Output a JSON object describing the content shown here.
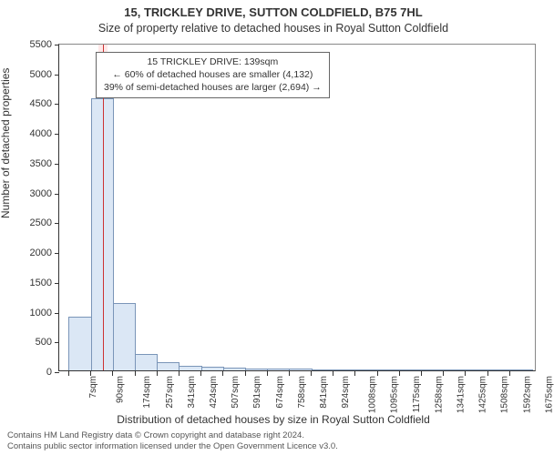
{
  "titles": {
    "line1": "15, TRICKLEY DRIVE, SUTTON COLDFIELD, B75 7HL",
    "line2": "Size of property relative to detached houses in Royal Sutton Coldfield"
  },
  "axes": {
    "ylabel": "Number of detached properties",
    "xlabel": "Distribution of detached houses by size in Royal Sutton Coldfield",
    "ylim": [
      0,
      5500
    ],
    "ytick_step": 500,
    "ytick_color": "#333333",
    "border_color": "#333333",
    "label_fontsize": 12,
    "tick_fontsize": 11
  },
  "chart": {
    "type": "histogram",
    "bar_fill": "#dbe7f5",
    "bar_stroke": "#7a95b8",
    "background": "#ffffff",
    "categories": [
      "7sqm",
      "90sqm",
      "174sqm",
      "257sqm",
      "341sqm",
      "424sqm",
      "507sqm",
      "591sqm",
      "674sqm",
      "758sqm",
      "841sqm",
      "924sqm",
      "1008sqm",
      "1095sqm",
      "1175sqm",
      "1258sqm",
      "1341sqm",
      "1425sqm",
      "1508sqm",
      "1592sqm",
      "1675sqm"
    ],
    "values": [
      880,
      4550,
      1120,
      260,
      130,
      60,
      40,
      30,
      20,
      10,
      10,
      5,
      5,
      5,
      5,
      2,
      2,
      2,
      2,
      2
    ],
    "highlight": {
      "band_color": "#ffe8e8",
      "line_color": "#cc3333",
      "value_sqm": 139,
      "band_start_idx": 1.35,
      "band_end_idx": 1.78,
      "line_idx": 1.58
    }
  },
  "annotation": {
    "line1": "15 TRICKLEY DRIVE: 139sqm",
    "line2": "← 60% of detached houses are smaller (4,132)",
    "line3": "39% of semi-detached houses are larger (2,694) →",
    "box_border": "#666666",
    "fontsize": 10.5
  },
  "footer": {
    "line1": "Contains HM Land Registry data © Crown copyright and database right 2024.",
    "line2": "Contains public sector information licensed under the Open Government Licence v3.0.",
    "fontsize": 9.5,
    "color": "#555555"
  }
}
